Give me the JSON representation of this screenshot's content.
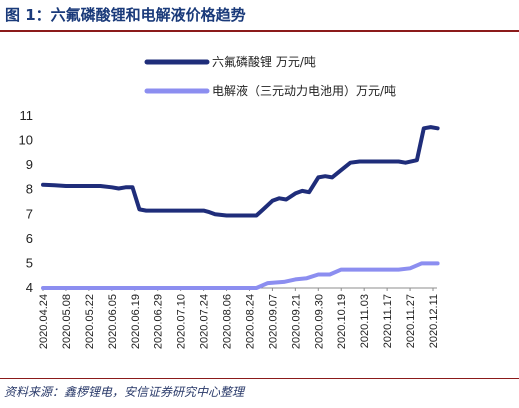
{
  "header": {
    "title": "图 1：六氟磷酸锂和电解液价格趋势"
  },
  "footer": {
    "source": "资料来源：鑫椤锂电，安信证券研究中心整理"
  },
  "colors": {
    "series1": "#1f2d7a",
    "series2": "#8c8ef0",
    "axis": "#8c8c8c",
    "title": "#1a3a7a",
    "rule": "#8b1a1a"
  },
  "chart_data": {
    "type": "line",
    "title": "",
    "xlabel": "",
    "ylabel": "",
    "ylim": [
      4,
      11
    ],
    "yticks": [
      4,
      5,
      6,
      7,
      8,
      9,
      10,
      11
    ],
    "grid": false,
    "legend_position": "top",
    "categories": [
      "2020.04.24",
      "2020.05.08",
      "2020.05.22",
      "2020.06.05",
      "2020.06.19",
      "2020.06.29",
      "2020.07.10",
      "2020.07.24",
      "2020.08.06",
      "2020.08.24",
      "2020.09.07",
      "2020.09.21",
      "2020.09.30",
      "2020.10.19",
      "2020.11.03",
      "2020.11.17",
      "2020.11.27",
      "2020.12.11"
    ],
    "series": [
      {
        "name": "六氟磷酸锂  万元/吨",
        "points": [
          [
            0,
            8.2
          ],
          [
            0.5,
            8.18
          ],
          [
            1,
            8.15
          ],
          [
            1.5,
            8.15
          ],
          [
            2,
            8.15
          ],
          [
            2.5,
            8.15
          ],
          [
            3,
            8.1
          ],
          [
            3.3,
            8.05
          ],
          [
            3.6,
            8.1
          ],
          [
            3.9,
            8.1
          ],
          [
            4.2,
            7.2
          ],
          [
            4.5,
            7.15
          ],
          [
            5,
            7.15
          ],
          [
            5.5,
            7.15
          ],
          [
            6,
            7.15
          ],
          [
            6.5,
            7.15
          ],
          [
            7,
            7.15
          ],
          [
            7.2,
            7.1
          ],
          [
            7.5,
            7.0
          ],
          [
            8,
            6.95
          ],
          [
            8.5,
            6.95
          ],
          [
            9,
            6.95
          ],
          [
            9.3,
            6.95
          ],
          [
            9.6,
            7.2
          ],
          [
            10,
            7.55
          ],
          [
            10.3,
            7.65
          ],
          [
            10.6,
            7.6
          ],
          [
            11,
            7.85
          ],
          [
            11.3,
            7.95
          ],
          [
            11.6,
            7.9
          ],
          [
            12,
            8.5
          ],
          [
            12.3,
            8.55
          ],
          [
            12.6,
            8.5
          ],
          [
            13,
            8.8
          ],
          [
            13.4,
            9.1
          ],
          [
            13.8,
            9.15
          ],
          [
            14.2,
            9.15
          ],
          [
            14.6,
            9.15
          ],
          [
            15,
            9.15
          ],
          [
            15.5,
            9.15
          ],
          [
            15.8,
            9.1
          ],
          [
            16.3,
            9.2
          ],
          [
            16.6,
            10.5
          ],
          [
            16.9,
            10.55
          ],
          [
            17.2,
            10.5
          ]
        ]
      },
      {
        "name": "电解液（三元动力电池用）万元/吨",
        "points": [
          [
            0,
            4.0
          ],
          [
            1,
            4.0
          ],
          [
            2,
            4.0
          ],
          [
            3,
            4.0
          ],
          [
            4,
            4.0
          ],
          [
            5,
            4.0
          ],
          [
            6,
            4.0
          ],
          [
            7,
            4.0
          ],
          [
            8,
            4.0
          ],
          [
            9,
            4.0
          ],
          [
            9.3,
            4.0
          ],
          [
            9.8,
            4.2
          ],
          [
            10.5,
            4.25
          ],
          [
            11,
            4.35
          ],
          [
            11.5,
            4.4
          ],
          [
            12,
            4.55
          ],
          [
            12.5,
            4.55
          ],
          [
            13,
            4.75
          ],
          [
            13.5,
            4.75
          ],
          [
            14,
            4.75
          ],
          [
            14.5,
            4.75
          ],
          [
            15,
            4.75
          ],
          [
            15.5,
            4.75
          ],
          [
            16,
            4.8
          ],
          [
            16.5,
            5.0
          ],
          [
            17.2,
            5.0
          ]
        ]
      }
    ]
  }
}
